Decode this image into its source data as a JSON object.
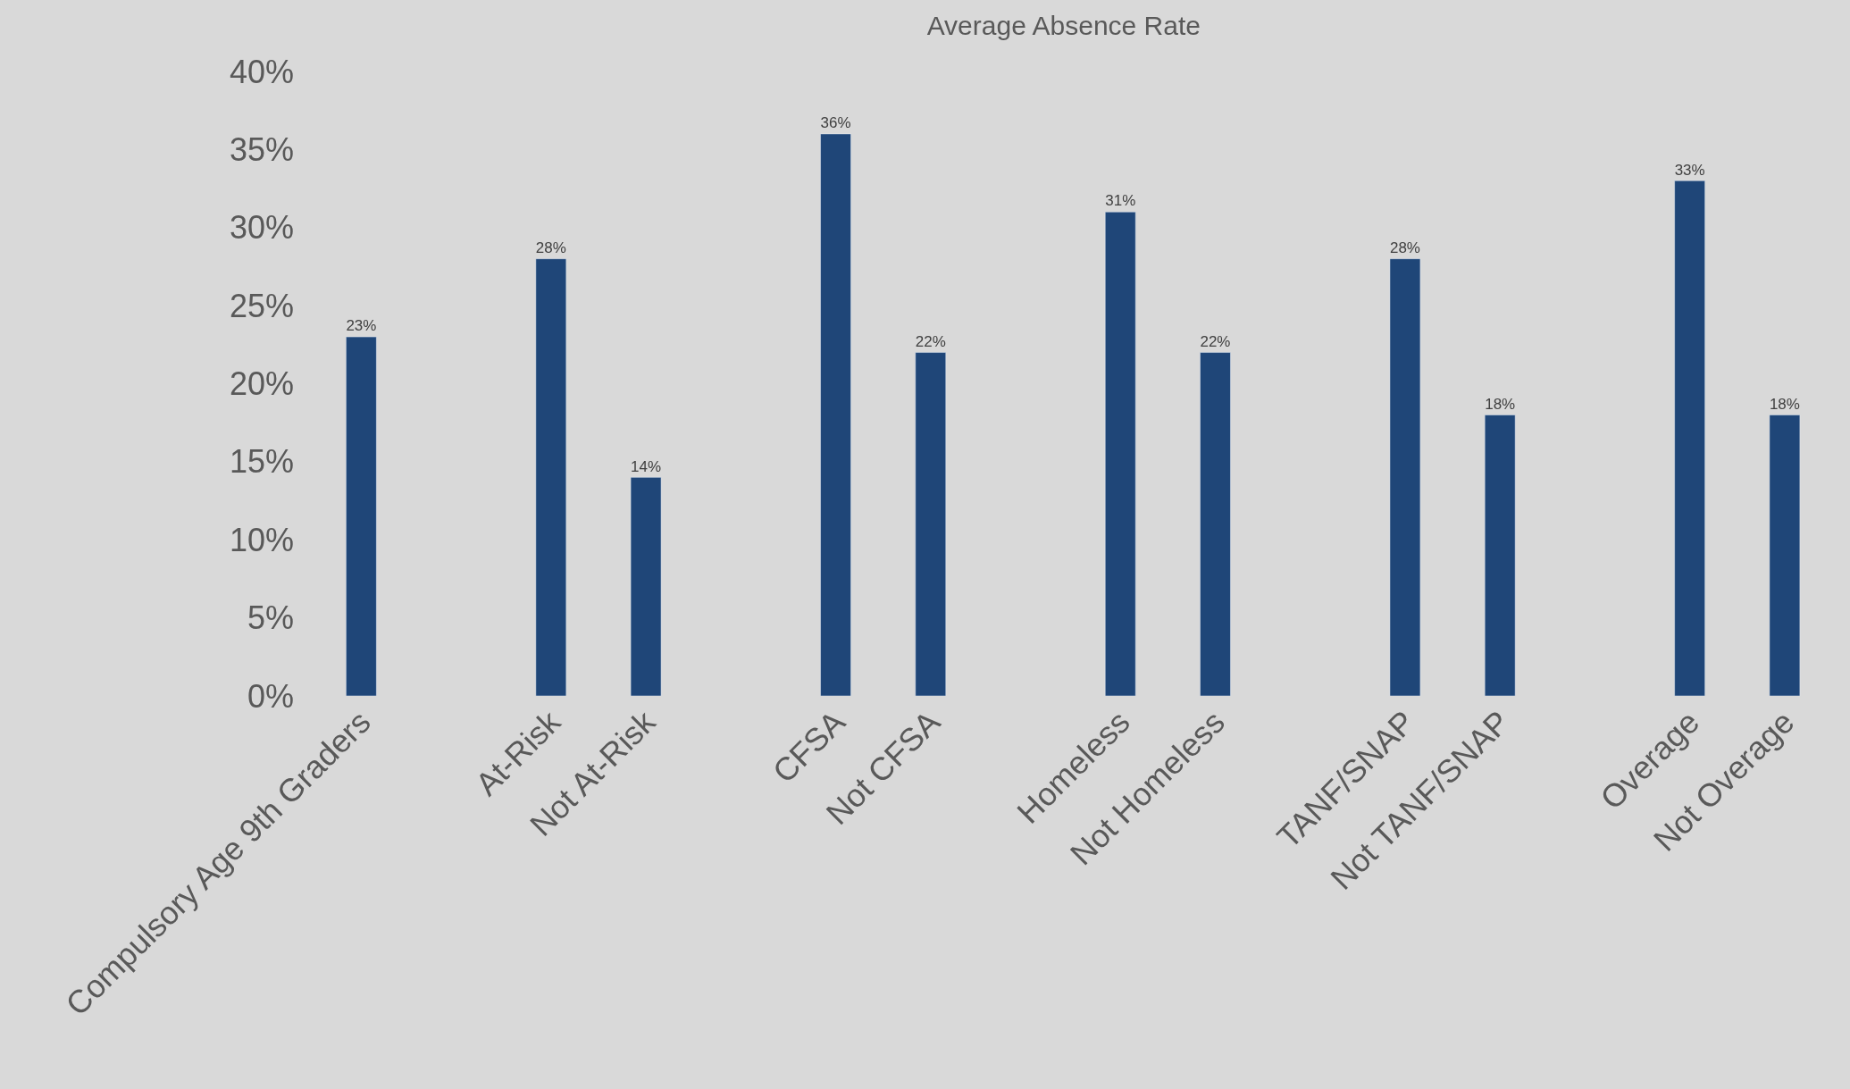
{
  "chart_data": {
    "type": "bar",
    "title": "Average Absence Rate",
    "categories": [
      "Compulsory Age 9th Graders",
      null,
      "At-Risk",
      "Not At-Risk",
      null,
      "CFSA",
      "Not CFSA",
      null,
      "Homeless",
      "Not Homeless",
      null,
      "TANF/SNAP",
      "Not TANF/SNAP",
      null,
      "Overage",
      "Not Overage"
    ],
    "values": [
      23,
      null,
      28,
      14,
      null,
      36,
      22,
      null,
      31,
      22,
      null,
      28,
      18,
      null,
      33,
      18
    ],
    "value_labels": [
      "23%",
      null,
      "28%",
      "14%",
      null,
      "36%",
      "22%",
      null,
      "31%",
      "22%",
      null,
      "28%",
      "18%",
      null,
      "33%",
      "18%"
    ],
    "color": "#1f4678",
    "ylim": [
      0,
      40
    ],
    "yticks": [
      {
        "value": 0,
        "label": "0%"
      },
      {
        "value": 5,
        "label": "5%"
      },
      {
        "value": 10,
        "label": "10%"
      },
      {
        "value": 15,
        "label": "15%"
      },
      {
        "value": 20,
        "label": "20%"
      },
      {
        "value": 25,
        "label": "25%"
      },
      {
        "value": 30,
        "label": "30%"
      },
      {
        "value": 35,
        "label": "35%"
      },
      {
        "value": 40,
        "label": "40%"
      }
    ],
    "grid": false,
    "legend": false
  }
}
